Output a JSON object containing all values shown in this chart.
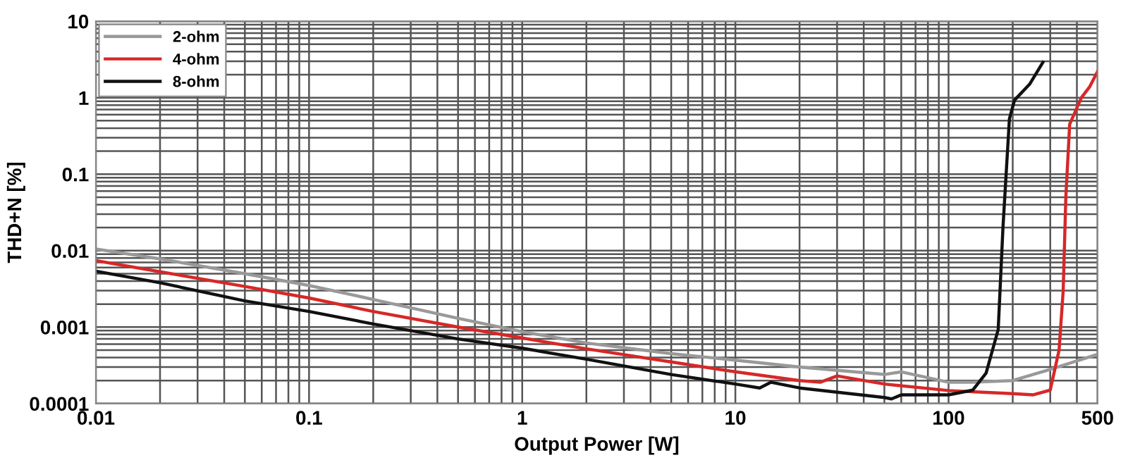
{
  "chart_data": {
    "type": "line",
    "xlabel": "Output Power [W]",
    "ylabel": "THD+N [%]",
    "log": "xy",
    "xlim": [
      0.01,
      500
    ],
    "ylim": [
      0.0001,
      10
    ],
    "xticks": [
      0.01,
      0.1,
      1,
      10,
      100,
      500
    ],
    "yticks": [
      0.0001,
      0.001,
      0.01,
      0.1,
      1,
      10
    ],
    "grid": true,
    "legend": "top left",
    "marker": "none",
    "line_style": "solid",
    "series": [
      {
        "name": "2-ohm",
        "color": "#999999",
        "x": [
          0.01,
          0.02,
          0.05,
          0.1,
          0.2,
          0.5,
          1,
          2,
          5,
          10,
          20,
          50,
          60,
          100,
          130,
          200,
          300,
          500
        ],
        "values": [
          0.0105,
          0.0078,
          0.005,
          0.0035,
          0.0023,
          0.0013,
          0.00087,
          0.00062,
          0.00045,
          0.00037,
          0.0003,
          0.00024,
          0.00026,
          0.00019,
          0.00019,
          0.0002,
          0.00028,
          0.00044
        ]
      },
      {
        "name": "4-ohm",
        "color": "#d62828",
        "x": [
          0.01,
          0.02,
          0.05,
          0.1,
          0.2,
          0.5,
          1,
          2,
          5,
          10,
          20,
          25,
          30,
          50,
          100,
          150,
          200,
          250,
          300,
          330,
          345,
          355,
          370,
          420,
          460,
          500
        ],
        "values": [
          0.0074,
          0.0053,
          0.0034,
          0.0024,
          0.0016,
          0.001,
          0.00072,
          0.00052,
          0.00035,
          0.00026,
          0.0002,
          0.00019,
          0.00023,
          0.00018,
          0.000148,
          0.00014,
          0.000135,
          0.00013,
          0.00015,
          0.0005,
          0.003,
          0.05,
          0.45,
          1.0,
          1.4,
          2.2
        ]
      },
      {
        "name": "8-ohm",
        "color": "#111111",
        "x": [
          0.01,
          0.02,
          0.05,
          0.1,
          0.2,
          0.5,
          1,
          2,
          5,
          10,
          13,
          14.7,
          20,
          50,
          54,
          60,
          100,
          130,
          150,
          171,
          180,
          193,
          204,
          240,
          277
        ],
        "values": [
          0.0054,
          0.0038,
          0.0022,
          0.0016,
          0.0011,
          0.0007,
          0.00053,
          0.00038,
          0.00024,
          0.00018,
          0.00016,
          0.00019,
          0.00016,
          0.00012,
          0.000115,
          0.00013,
          0.00013,
          0.00015,
          0.00025,
          0.00093,
          0.02,
          0.53,
          0.93,
          1.5,
          2.9
        ]
      }
    ]
  }
}
